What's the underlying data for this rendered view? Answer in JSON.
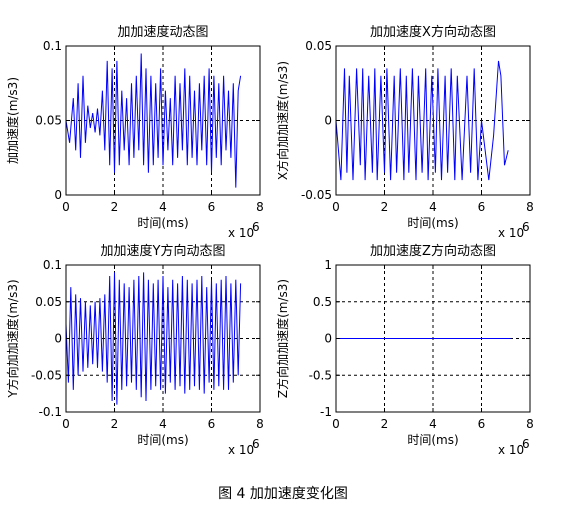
{
  "figure_caption": "图 4  加加速度变化图",
  "chart_data": [
    {
      "type": "line",
      "title": "加加速度动态图",
      "xlabel": "时间(ms)",
      "ylabel": "加加速度(m/s3)",
      "x_exponent": "x 10",
      "x_exponent_power": "6",
      "xlim": [
        0,
        8
      ],
      "ylim": [
        0,
        0.1
      ],
      "xticks": [
        "0",
        "2",
        "4",
        "6",
        "8"
      ],
      "yticks": [
        "0",
        "0.05",
        "0.1"
      ],
      "ytick_values": [
        0,
        0.05,
        0.1
      ],
      "grid": true,
      "series": [
        {
          "color": "#0000ff",
          "x": [
            0.0,
            0.15,
            0.3,
            0.4,
            0.5,
            0.6,
            0.7,
            0.8,
            0.9,
            1.0,
            1.1,
            1.2,
            1.3,
            1.4,
            1.5,
            1.6,
            1.7,
            1.8,
            1.9,
            2.0,
            2.1,
            2.2,
            2.3,
            2.4,
            2.5,
            2.6,
            2.7,
            2.8,
            2.9,
            3.0,
            3.1,
            3.2,
            3.3,
            3.4,
            3.5,
            3.6,
            3.7,
            3.8,
            3.9,
            4.0,
            4.1,
            4.2,
            4.3,
            4.4,
            4.5,
            4.6,
            4.7,
            4.8,
            4.9,
            5.0,
            5.1,
            5.2,
            5.3,
            5.4,
            5.5,
            5.6,
            5.7,
            5.8,
            5.9,
            6.0,
            6.1,
            6.2,
            6.3,
            6.4,
            6.5,
            6.6,
            6.7,
            6.8,
            6.9,
            7.0,
            7.1,
            7.2
          ],
          "values": [
            0.05,
            0.035,
            0.065,
            0.03,
            0.075,
            0.025,
            0.08,
            0.035,
            0.06,
            0.045,
            0.055,
            0.042,
            0.058,
            0.04,
            0.07,
            0.03,
            0.09,
            0.02,
            0.085,
            0.015,
            0.09,
            0.02,
            0.07,
            0.03,
            0.065,
            0.02,
            0.075,
            0.025,
            0.08,
            0.03,
            0.095,
            0.02,
            0.085,
            0.015,
            0.08,
            0.02,
            0.075,
            0.025,
            0.085,
            0.02,
            0.07,
            0.03,
            0.065,
            0.02,
            0.08,
            0.025,
            0.075,
            0.03,
            0.085,
            0.02,
            0.08,
            0.025,
            0.07,
            0.02,
            0.075,
            0.03,
            0.08,
            0.02,
            0.085,
            0.015,
            0.08,
            0.025,
            0.075,
            0.02,
            0.08,
            0.03,
            0.07,
            0.025,
            0.075,
            0.005,
            0.07,
            0.08
          ]
        }
      ]
    },
    {
      "type": "line",
      "title": "加加速度X方向动态图",
      "xlabel": "时间(ms)",
      "ylabel": "X方向加加速度(m/s3)",
      "x_exponent": "x 10",
      "x_exponent_power": "6",
      "xlim": [
        0,
        8
      ],
      "ylim": [
        -0.05,
        0.05
      ],
      "xticks": [
        "0",
        "2",
        "4",
        "6",
        "8"
      ],
      "yticks": [
        "-0.05",
        "0",
        "0.05"
      ],
      "ytick_values": [
        -0.05,
        0,
        0.05
      ],
      "grid": true,
      "series": [
        {
          "color": "#0000ff",
          "x": [
            0.0,
            0.2,
            0.35,
            0.45,
            0.55,
            0.7,
            0.85,
            1.0,
            1.1,
            1.2,
            1.35,
            1.5,
            1.6,
            1.7,
            1.85,
            2.0,
            2.1,
            2.25,
            2.4,
            2.5,
            2.65,
            2.8,
            2.9,
            3.0,
            3.15,
            3.3,
            3.4,
            3.55,
            3.7,
            3.8,
            3.95,
            4.1,
            4.2,
            4.35,
            4.5,
            4.6,
            4.75,
            4.9,
            5.0,
            5.2,
            5.4,
            5.55,
            5.7,
            5.85,
            6.0,
            6.3,
            6.5,
            6.7,
            6.8,
            6.95,
            7.1
          ],
          "values": [
            0.0,
            -0.04,
            0.035,
            -0.035,
            0.03,
            -0.04,
            0.035,
            -0.03,
            0.035,
            -0.04,
            0.03,
            -0.035,
            0.035,
            -0.04,
            0.03,
            -0.035,
            0.035,
            -0.04,
            0.03,
            -0.035,
            0.035,
            -0.04,
            0.03,
            -0.035,
            0.035,
            -0.04,
            0.03,
            -0.035,
            0.035,
            -0.04,
            0.03,
            -0.035,
            0.035,
            -0.04,
            0.03,
            -0.035,
            0.035,
            -0.04,
            0.03,
            -0.04,
            0.03,
            -0.035,
            0.035,
            -0.04,
            0.0,
            -0.04,
            -0.01,
            0.04,
            0.03,
            -0.03,
            -0.02
          ]
        }
      ]
    },
    {
      "type": "line",
      "title": "加加速度Y方向动态图",
      "xlabel": "时间(ms)",
      "ylabel": "Y方向加加速度(m/s3)",
      "x_exponent": "x 10",
      "x_exponent_power": "6",
      "xlim": [
        0,
        8
      ],
      "ylim": [
        -0.1,
        0.1
      ],
      "xticks": [
        "0",
        "2",
        "4",
        "6",
        "8"
      ],
      "yticks": [
        "-0.1",
        "-0.05",
        "0",
        "0.05",
        "0.1"
      ],
      "ytick_values": [
        -0.1,
        -0.05,
        0,
        0.05,
        0.1
      ],
      "grid": true,
      "series": [
        {
          "color": "#0000ff",
          "x": [
            0.0,
            0.1,
            0.2,
            0.3,
            0.4,
            0.5,
            0.6,
            0.7,
            0.8,
            0.9,
            1.0,
            1.1,
            1.2,
            1.3,
            1.4,
            1.5,
            1.6,
            1.7,
            1.8,
            1.9,
            2.0,
            2.1,
            2.2,
            2.3,
            2.4,
            2.5,
            2.6,
            2.7,
            2.8,
            2.9,
            3.0,
            3.1,
            3.2,
            3.3,
            3.4,
            3.5,
            3.6,
            3.7,
            3.8,
            3.9,
            4.0,
            4.1,
            4.2,
            4.3,
            4.4,
            4.5,
            4.6,
            4.7,
            4.8,
            4.9,
            5.0,
            5.1,
            5.2,
            5.3,
            5.4,
            5.5,
            5.6,
            5.7,
            5.8,
            5.9,
            6.0,
            6.1,
            6.2,
            6.3,
            6.4,
            6.5,
            6.6,
            6.7,
            6.8,
            6.9,
            7.0,
            7.1,
            7.2
          ],
          "values": [
            0.02,
            -0.06,
            0.07,
            -0.07,
            0.06,
            -0.05,
            0.055,
            -0.045,
            0.05,
            -0.04,
            0.045,
            -0.035,
            0.05,
            -0.04,
            0.055,
            -0.045,
            0.06,
            -0.06,
            0.085,
            -0.085,
            0.09,
            -0.09,
            0.08,
            -0.07,
            0.075,
            -0.065,
            0.07,
            -0.06,
            0.08,
            -0.07,
            0.085,
            -0.08,
            0.09,
            -0.085,
            0.08,
            -0.07,
            0.075,
            -0.065,
            0.08,
            -0.07,
            0.085,
            -0.075,
            0.07,
            -0.06,
            0.08,
            -0.07,
            0.075,
            -0.065,
            0.085,
            -0.075,
            0.08,
            -0.07,
            0.075,
            -0.065,
            0.08,
            -0.07,
            0.085,
            -0.075,
            0.07,
            -0.06,
            0.08,
            -0.07,
            0.075,
            -0.065,
            0.08,
            -0.07,
            0.085,
            -0.07,
            0.075,
            -0.06,
            0.08,
            -0.05,
            0.075
          ]
        }
      ]
    },
    {
      "type": "line",
      "title": "加加速度Z方向动态图",
      "xlabel": "时间(ms)",
      "ylabel": "Z方向加加速度(m/s3)",
      "x_exponent": "x 10",
      "x_exponent_power": "6",
      "xlim": [
        0,
        8
      ],
      "ylim": [
        -1,
        1
      ],
      "xticks": [
        "0",
        "2",
        "4",
        "6",
        "8"
      ],
      "yticks": [
        "-1",
        "-0.5",
        "0",
        "0.5",
        "1"
      ],
      "ytick_values": [
        -1,
        -0.5,
        0,
        0.5,
        1
      ],
      "grid": true,
      "series": [
        {
          "color": "#0000ff",
          "x": [
            0.0,
            7.2
          ],
          "values": [
            0,
            0
          ]
        }
      ]
    }
  ]
}
